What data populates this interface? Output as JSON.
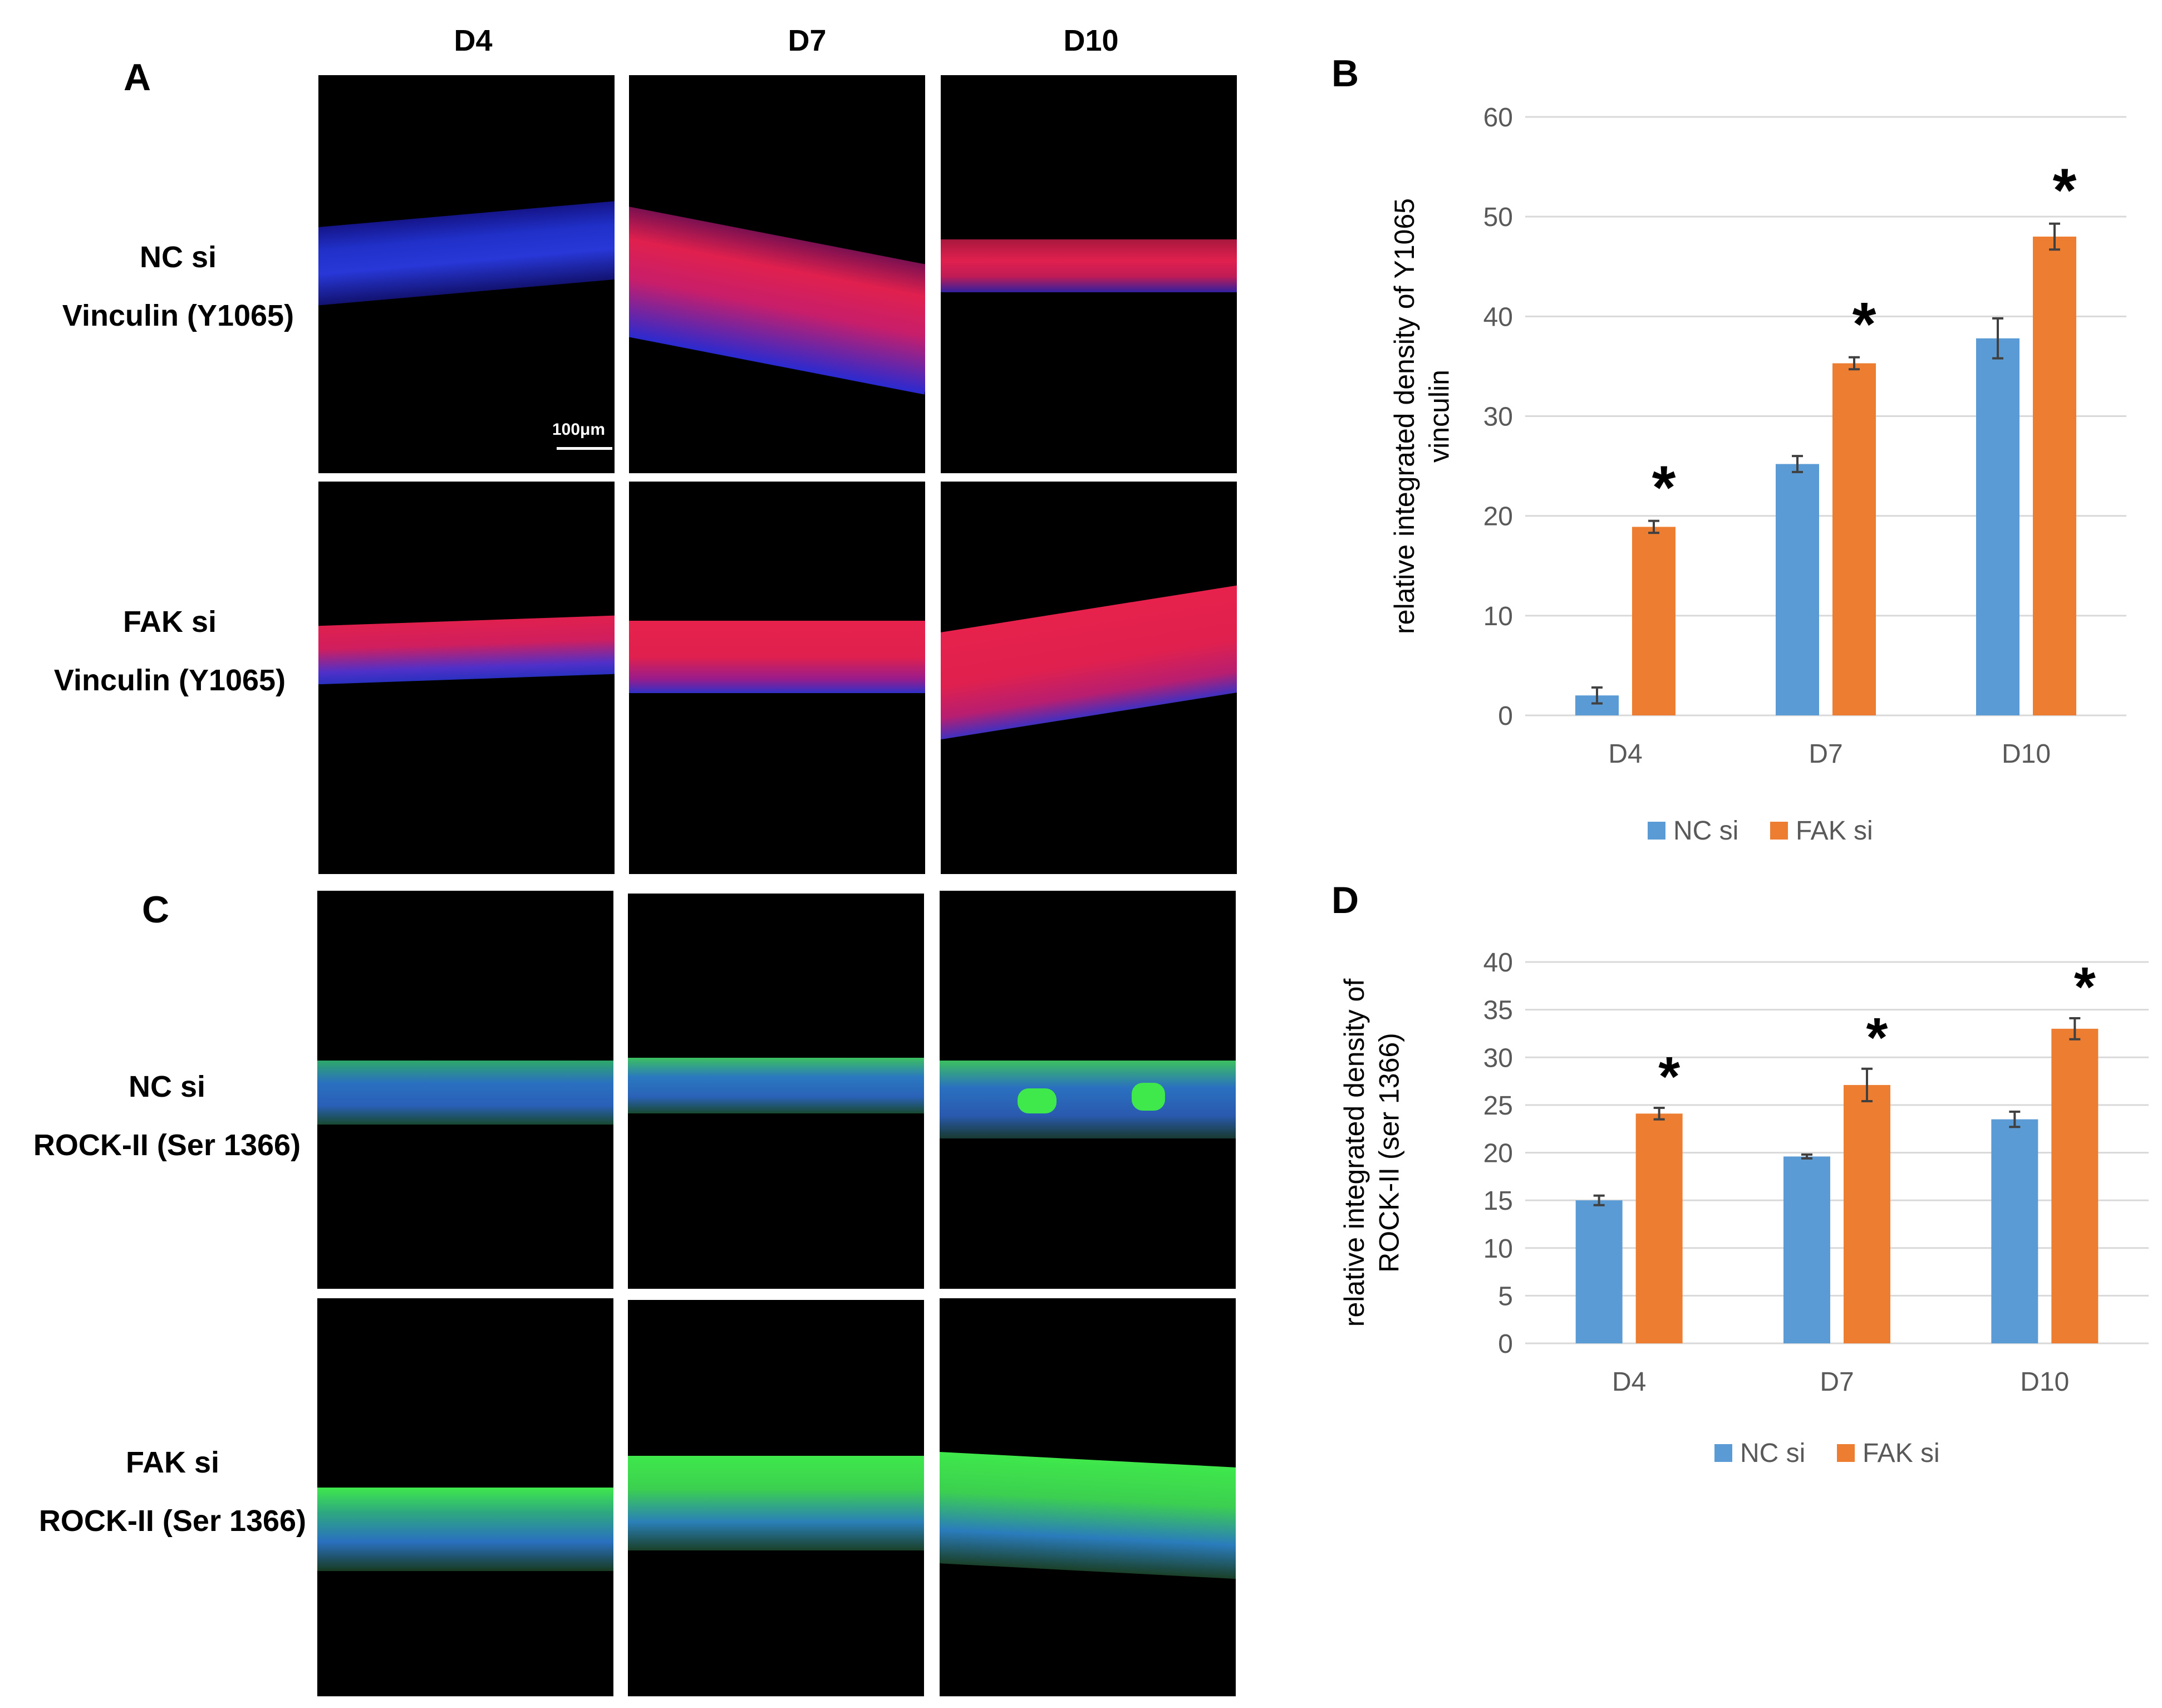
{
  "figure": {
    "panel_letters": {
      "a": "A",
      "b": "B",
      "c": "C",
      "d": "D"
    },
    "column_headers": [
      "D4",
      "D7",
      "D10"
    ],
    "row_labels": {
      "a_row1": [
        "NC si",
        "Vinculin (Y1065)"
      ],
      "a_row2": [
        "FAK si",
        "Vinculin (Y1065)"
      ],
      "c_row1": [
        "NC si",
        "ROCK-II (Ser 1366)"
      ],
      "c_row2": [
        "FAK si",
        "ROCK-II (Ser 1366)"
      ]
    },
    "scale_bar_label": "100μm",
    "colors": {
      "nc": "#5b9bd5",
      "fak": "#ed7d31",
      "grid": "#d9d9d9",
      "axis_text": "#595959",
      "vinculin_stain": "#e8194a",
      "rock_stain": "#3fe84b",
      "dapi": "#2a3ee0"
    }
  },
  "chart_data": [
    {
      "type": "bar",
      "panel": "B",
      "categories": [
        "D4",
        "D7",
        "D10"
      ],
      "series": [
        {
          "name": "NC si",
          "values": [
            2,
            25.2,
            37.8
          ],
          "errors": [
            0.8,
            0.8,
            2
          ]
        },
        {
          "name": "FAK si",
          "values": [
            18.9,
            35.3,
            48
          ],
          "errors": [
            0.6,
            0.6,
            1.3
          ]
        }
      ],
      "significance": [
        "*",
        "*",
        "*"
      ],
      "ylabel_lines": [
        "relative integrated density of Y1065",
        "vinculin"
      ],
      "xlabel": "",
      "ylim": [
        0,
        60
      ],
      "yticks": [
        0,
        10,
        20,
        30,
        40,
        50,
        60
      ],
      "legend": "bottom"
    },
    {
      "type": "bar",
      "panel": "D",
      "categories": [
        "D4",
        "D7",
        "D10"
      ],
      "series": [
        {
          "name": "NC si",
          "values": [
            15,
            19.6,
            23.5
          ],
          "errors": [
            0.5,
            0.2,
            0.8
          ]
        },
        {
          "name": "FAK si",
          "values": [
            24.1,
            27.1,
            33
          ],
          "errors": [
            0.6,
            1.7,
            1.1
          ]
        }
      ],
      "significance": [
        "*",
        "*",
        "*"
      ],
      "ylabel_lines": [
        "relative integrated density of",
        "ROCK-II (ser 1366)"
      ],
      "xlabel": "",
      "ylim": [
        0,
        40
      ],
      "yticks": [
        0,
        5,
        10,
        15,
        20,
        25,
        30,
        35,
        40
      ],
      "legend": "bottom"
    }
  ]
}
